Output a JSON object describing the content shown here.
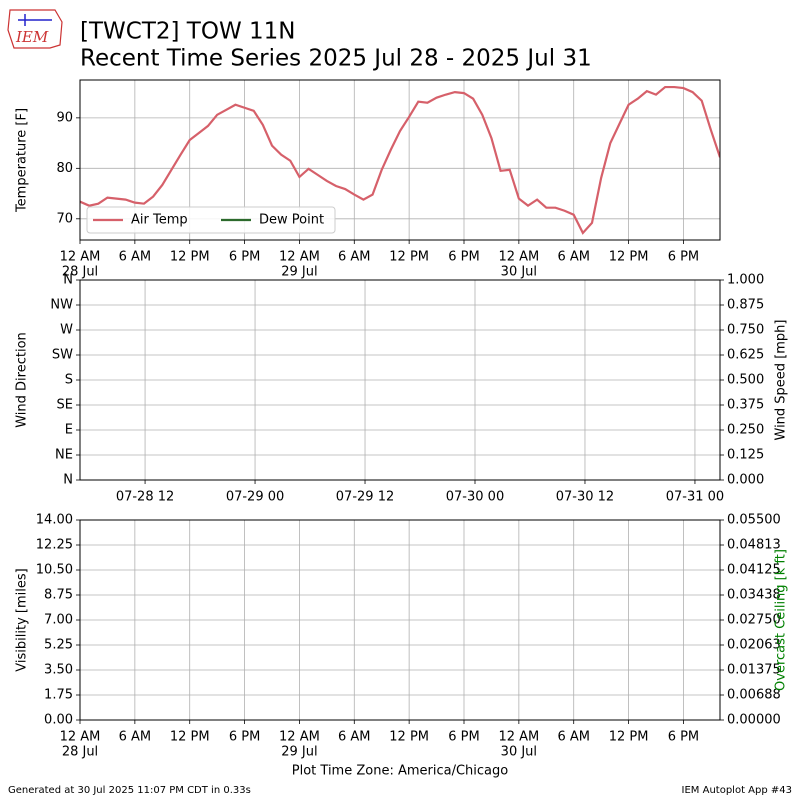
{
  "header": {
    "logo": "IEM",
    "title": "[TWCT2] TOW 11N",
    "subtitle": "Recent Time Series 2025 Jul 28 - 2025 Jul 31"
  },
  "chart_data": [
    {
      "type": "line",
      "ylabel": "Temperature [F]",
      "legend": "lower left",
      "grid": true,
      "xlim": [
        "2025-07-28 00:00",
        "2025-07-30 22:00"
      ],
      "xticks": [
        {
          "value": "2025-07-28 00:00",
          "label": "12 AM"
        },
        {
          "value": "2025-07-28 06:00",
          "label": "6 AM"
        },
        {
          "value": "2025-07-28 12:00",
          "label": "12 PM"
        },
        {
          "value": "2025-07-28 18:00",
          "label": "6 PM"
        },
        {
          "value": "2025-07-29 00:00",
          "label": "12 AM"
        },
        {
          "value": "2025-07-29 06:00",
          "label": "6 AM"
        },
        {
          "value": "2025-07-29 12:00",
          "label": "12 PM"
        },
        {
          "value": "2025-07-29 18:00",
          "label": "6 PM"
        },
        {
          "value": "2025-07-30 00:00",
          "label": "12 AM"
        },
        {
          "value": "2025-07-30 06:00",
          "label": "6 AM"
        },
        {
          "value": "2025-07-30 12:00",
          "label": "12 PM"
        },
        {
          "value": "2025-07-30 18:00",
          "label": "6 PM"
        }
      ],
      "xdates": [
        {
          "value": "2025-07-28 00:00",
          "label": "28 Jul"
        },
        {
          "value": "2025-07-29 00:00",
          "label": "29 Jul"
        },
        {
          "value": "2025-07-30 00:00",
          "label": "30 Jul"
        }
      ],
      "ylim": [
        65.8,
        97.5
      ],
      "yticks": [
        70,
        80,
        90
      ],
      "x": [
        "2025-07-28 00:00",
        "2025-07-28 01:00",
        "2025-07-28 02:00",
        "2025-07-28 03:00",
        "2025-07-28 04:00",
        "2025-07-28 05:00",
        "2025-07-28 06:00",
        "2025-07-28 07:00",
        "2025-07-28 08:00",
        "2025-07-28 09:00",
        "2025-07-28 10:00",
        "2025-07-28 11:00",
        "2025-07-28 12:00",
        "2025-07-28 13:00",
        "2025-07-28 14:00",
        "2025-07-28 15:00",
        "2025-07-28 16:00",
        "2025-07-28 17:00",
        "2025-07-28 18:00",
        "2025-07-28 19:00",
        "2025-07-28 20:00",
        "2025-07-28 21:00",
        "2025-07-28 22:00",
        "2025-07-28 23:00",
        "2025-07-29 00:00",
        "2025-07-29 01:00",
        "2025-07-29 02:00",
        "2025-07-29 03:00",
        "2025-07-29 04:00",
        "2025-07-29 05:00",
        "2025-07-29 06:00",
        "2025-07-29 07:00",
        "2025-07-29 08:00",
        "2025-07-29 09:00",
        "2025-07-29 10:00",
        "2025-07-29 11:00",
        "2025-07-29 12:00",
        "2025-07-29 13:00",
        "2025-07-29 14:00",
        "2025-07-29 15:00",
        "2025-07-29 16:00",
        "2025-07-29 17:00",
        "2025-07-29 18:00",
        "2025-07-29 19:00",
        "2025-07-29 20:00",
        "2025-07-29 21:00",
        "2025-07-29 22:00",
        "2025-07-29 23:00",
        "2025-07-30 00:00",
        "2025-07-30 01:00",
        "2025-07-30 02:00",
        "2025-07-30 03:00",
        "2025-07-30 04:00",
        "2025-07-30 05:00",
        "2025-07-30 06:00",
        "2025-07-30 07:00",
        "2025-07-30 08:00",
        "2025-07-30 09:00",
        "2025-07-30 10:00",
        "2025-07-30 11:00",
        "2025-07-30 12:00",
        "2025-07-30 13:00",
        "2025-07-30 14:00",
        "2025-07-30 15:00",
        "2025-07-30 16:00",
        "2025-07-30 17:00",
        "2025-07-30 18:00",
        "2025-07-30 19:00",
        "2025-07-30 20:00",
        "2025-07-30 21:00",
        "2025-07-30 22:00"
      ],
      "series": [
        {
          "name": "Air Temp",
          "color": "#d6606a",
          "values": [
            73.4,
            72.6,
            73.0,
            74.2,
            74.0,
            73.8,
            73.2,
            73.0,
            74.4,
            76.7,
            79.7,
            82.7,
            85.6,
            87.0,
            88.4,
            90.6,
            91.6,
            92.6,
            92.0,
            91.4,
            88.6,
            84.5,
            82.7,
            81.5,
            78.3,
            79.9,
            78.7,
            77.5,
            76.5,
            75.9,
            74.8,
            73.8,
            74.8,
            79.7,
            83.7,
            87.4,
            90.2,
            93.2,
            93.0,
            94.0,
            94.6,
            95.1,
            94.9,
            93.8,
            90.6,
            86.0,
            79.5,
            79.7,
            74.0,
            72.6,
            73.8,
            72.2,
            72.2,
            71.6,
            70.8,
            67.2,
            69.2,
            78.1,
            85.0,
            88.8,
            92.6,
            93.8,
            95.3,
            94.6,
            96.1,
            96.1,
            95.9,
            95.1,
            93.4,
            87.6,
            82.2
          ]
        },
        {
          "name": "Dew Point",
          "color": "#2c6a2c",
          "values": [
            null,
            null,
            null,
            null,
            null,
            null,
            null,
            null,
            null,
            null,
            null,
            null,
            null,
            null,
            null,
            null,
            null,
            null,
            null,
            null,
            null,
            null,
            null,
            null,
            null,
            null,
            null,
            null,
            null,
            null,
            null,
            null,
            null,
            null,
            null,
            null,
            null,
            null,
            null,
            null,
            null,
            null,
            null,
            null,
            null,
            null,
            null,
            null,
            null,
            null,
            null,
            null,
            null,
            null,
            null,
            null,
            null,
            null,
            null,
            null,
            null,
            null,
            null,
            null,
            null,
            null,
            null,
            null,
            null,
            null,
            null
          ]
        }
      ]
    },
    {
      "type": "line",
      "ylabel": "Wind Direction",
      "y2label": "Wind Speed [mph]",
      "grid": true,
      "xlim": [
        "2025-07-28 04:54",
        "2025-07-31 02:44"
      ],
      "xticks": [
        {
          "value": "2025-07-28 12:00",
          "label": "07-28 12"
        },
        {
          "value": "2025-07-29 00:00",
          "label": "07-29 00"
        },
        {
          "value": "2025-07-29 12:00",
          "label": "07-29 12"
        },
        {
          "value": "2025-07-30 00:00",
          "label": "07-30 00"
        },
        {
          "value": "2025-07-30 12:00",
          "label": "07-30 12"
        },
        {
          "value": "2025-07-31 00:00",
          "label": "07-31 00"
        }
      ],
      "ylim": [
        0,
        360
      ],
      "yticks": [
        {
          "value": 0,
          "label": "N"
        },
        {
          "value": 45,
          "label": "NE"
        },
        {
          "value": 90,
          "label": "E"
        },
        {
          "value": 135,
          "label": "SE"
        },
        {
          "value": 180,
          "label": "S"
        },
        {
          "value": 225,
          "label": "SW"
        },
        {
          "value": 270,
          "label": "W"
        },
        {
          "value": 315,
          "label": "NW"
        },
        {
          "value": 360,
          "label": "N"
        }
      ],
      "y2lim": [
        0,
        1
      ],
      "y2ticks": [
        {
          "value": 0,
          "label": "0.000"
        },
        {
          "value": 0.125,
          "label": "0.125"
        },
        {
          "value": 0.25,
          "label": "0.250"
        },
        {
          "value": 0.375,
          "label": "0.375"
        },
        {
          "value": 0.5,
          "label": "0.500"
        },
        {
          "value": 0.625,
          "label": "0.625"
        },
        {
          "value": 0.75,
          "label": "0.750"
        },
        {
          "value": 0.875,
          "label": "0.875"
        },
        {
          "value": 1,
          "label": "1.000"
        }
      ],
      "series": []
    },
    {
      "type": "line",
      "ylabel": "Visibility [miles]",
      "y2label": "Overcast Ceiling [k ft]",
      "y2label_color": "#008000",
      "xlabel": "Plot Time Zone: America/Chicago",
      "grid": true,
      "xlim": [
        "2025-07-28 00:00",
        "2025-07-30 22:00"
      ],
      "xticks": [
        {
          "value": "2025-07-28 00:00",
          "label": "12 AM"
        },
        {
          "value": "2025-07-28 06:00",
          "label": "6 AM"
        },
        {
          "value": "2025-07-28 12:00",
          "label": "12 PM"
        },
        {
          "value": "2025-07-28 18:00",
          "label": "6 PM"
        },
        {
          "value": "2025-07-29 00:00",
          "label": "12 AM"
        },
        {
          "value": "2025-07-29 06:00",
          "label": "6 AM"
        },
        {
          "value": "2025-07-29 12:00",
          "label": "12 PM"
        },
        {
          "value": "2025-07-29 18:00",
          "label": "6 PM"
        },
        {
          "value": "2025-07-30 00:00",
          "label": "12 AM"
        },
        {
          "value": "2025-07-30 06:00",
          "label": "6 AM"
        },
        {
          "value": "2025-07-30 12:00",
          "label": "12 PM"
        },
        {
          "value": "2025-07-30 18:00",
          "label": "6 PM"
        }
      ],
      "xdates": [
        {
          "value": "2025-07-28 00:00",
          "label": "28 Jul"
        },
        {
          "value": "2025-07-29 00:00",
          "label": "29 Jul"
        },
        {
          "value": "2025-07-30 00:00",
          "label": "30 Jul"
        }
      ],
      "ylim": [
        0,
        14
      ],
      "yticks": [
        {
          "value": 0,
          "label": "0.00"
        },
        {
          "value": 1.75,
          "label": "1.75"
        },
        {
          "value": 3.5,
          "label": "3.50"
        },
        {
          "value": 5.25,
          "label": "5.25"
        },
        {
          "value": 7,
          "label": "7.00"
        },
        {
          "value": 8.75,
          "label": "8.75"
        },
        {
          "value": 10.5,
          "label": "10.50"
        },
        {
          "value": 12.25,
          "label": "12.25"
        },
        {
          "value": 14,
          "label": "14.00"
        }
      ],
      "y2lim": [
        0,
        0.055
      ],
      "y2ticks": [
        {
          "value": 0,
          "label": "0.00000"
        },
        {
          "value": 0.006875,
          "label": "0.00688"
        },
        {
          "value": 0.01375,
          "label": "0.01375"
        },
        {
          "value": 0.020625,
          "label": "0.02063"
        },
        {
          "value": 0.0275,
          "label": "0.02750"
        },
        {
          "value": 0.034375,
          "label": "0.03438"
        },
        {
          "value": 0.04125,
          "label": "0.04125"
        },
        {
          "value": 0.048125,
          "label": "0.04813"
        },
        {
          "value": 0.055,
          "label": "0.05500"
        }
      ],
      "series": []
    }
  ],
  "footer": {
    "generated": "Generated at 30 Jul 2025 11:07 PM CDT in 0.33s",
    "app": "IEM Autoplot App #43"
  }
}
